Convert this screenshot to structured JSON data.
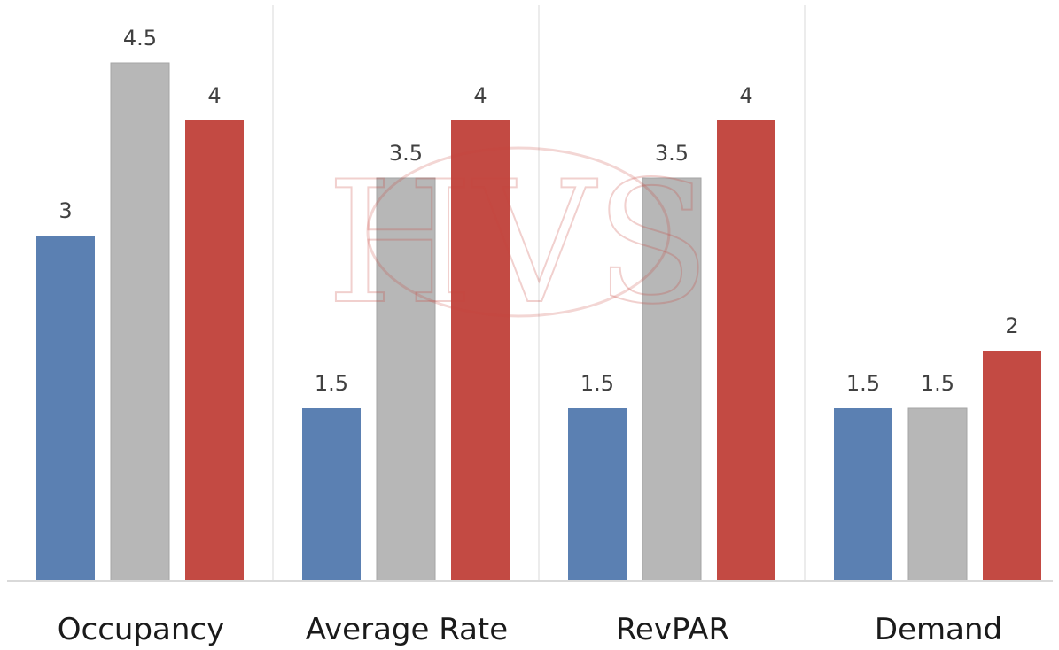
{
  "chart_data": {
    "type": "bar",
    "categories": [
      "Occupancy",
      "Average Rate",
      "RevPAR",
      "Demand"
    ],
    "series": [
      {
        "values": [
          3,
          1.5,
          1.5,
          1.5
        ],
        "color": "#5b80b2"
      },
      {
        "values": [
          4.5,
          3.5,
          3.5,
          1.5
        ],
        "color": "#b7b7b7"
      },
      {
        "values": [
          4,
          4,
          4,
          2
        ],
        "color": "#c34a43"
      }
    ],
    "ylim": [
      0,
      5
    ],
    "grid": false,
    "legend": "none",
    "title": "",
    "xlabel": "",
    "ylabel": ""
  },
  "watermark": {
    "text": "HVS",
    "color": "#c9453b"
  }
}
